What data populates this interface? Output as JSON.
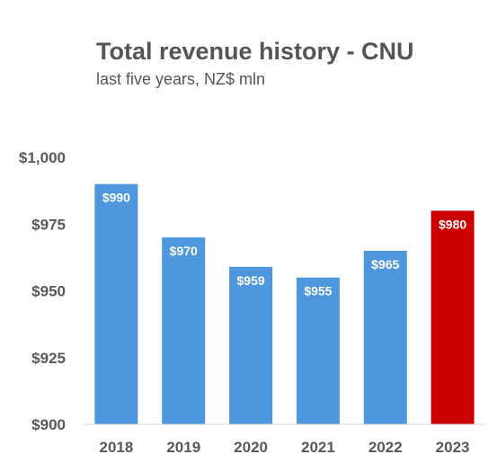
{
  "chart_data": {
    "type": "bar",
    "title": "Total revenue history - CNU",
    "subtitle": "last five years, NZ$ mln",
    "categories": [
      "2018",
      "2019",
      "2020",
      "2021",
      "2022",
      "2023"
    ],
    "values": [
      990,
      970,
      959,
      955,
      965,
      980
    ],
    "data_labels": [
      "$990",
      "$970",
      "$959",
      "$955",
      "$965",
      "$980"
    ],
    "ylim": [
      900,
      1000
    ],
    "yticks": [
      900,
      925,
      950,
      975,
      1000
    ],
    "ytick_labels": [
      "$900",
      "$925",
      "$950",
      "$975",
      "$1,000"
    ],
    "xlabel": "",
    "ylabel": "",
    "grid": false,
    "legend": "none",
    "colors": {
      "default_bar": "#4f97dc",
      "highlight_bar": "#cc0000",
      "highlight_category": "2023",
      "axis": "#d9d9d9",
      "text": "#595959"
    }
  }
}
